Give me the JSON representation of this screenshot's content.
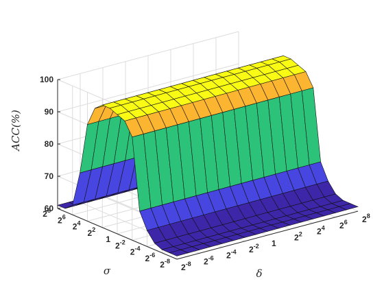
{
  "chart_data": {
    "type": "surface",
    "title": "",
    "zlabel": "ACC(%)",
    "xlabel": "δ",
    "ylabel": "σ",
    "zlim": [
      60,
      100
    ],
    "z_ticks": [
      "60",
      "70",
      "80",
      "90",
      "100"
    ],
    "grid": true,
    "delta_ticks": [
      {
        "base": "2",
        "exp": "-8"
      },
      {
        "base": "2",
        "exp": "-6"
      },
      {
        "base": "2",
        "exp": "-4"
      },
      {
        "base": "2",
        "exp": "-2"
      },
      {
        "base": "1",
        "exp": ""
      },
      {
        "base": "2",
        "exp": "2"
      },
      {
        "base": "2",
        "exp": "4"
      },
      {
        "base": "2",
        "exp": "6"
      },
      {
        "base": "2",
        "exp": "8"
      }
    ],
    "sigma_ticks": [
      {
        "base": "2",
        "exp": "-8"
      },
      {
        "base": "2",
        "exp": "-6"
      },
      {
        "base": "2",
        "exp": "-4"
      },
      {
        "base": "2",
        "exp": "-2"
      },
      {
        "base": "1",
        "exp": ""
      },
      {
        "base": "2",
        "exp": "2"
      },
      {
        "base": "2",
        "exp": "4"
      },
      {
        "base": "2",
        "exp": "6"
      },
      {
        "base": "2",
        "exp": "8"
      }
    ],
    "delta_log2_values": [
      -8,
      -7,
      -6,
      -5,
      -4,
      -3,
      -2,
      -1,
      0,
      1,
      2,
      3,
      4,
      5,
      6,
      7,
      8
    ],
    "sigma_log2_values": [
      -8,
      -7,
      -6,
      -5,
      -4,
      -3,
      -2,
      -1,
      0,
      1,
      2,
      3,
      4,
      5,
      6,
      7,
      8
    ],
    "acc_profile_by_sigma": [
      61,
      61,
      61,
      62,
      65,
      70,
      92,
      96,
      97,
      98,
      98,
      96,
      90,
      74,
      63,
      61,
      61
    ],
    "colormap": [
      "#3e26a8",
      "#4746e0",
      "#2f8ef0",
      "#1fb1d1",
      "#2cc27a",
      "#b9bc3a",
      "#fbb530",
      "#f9fb15"
    ]
  }
}
